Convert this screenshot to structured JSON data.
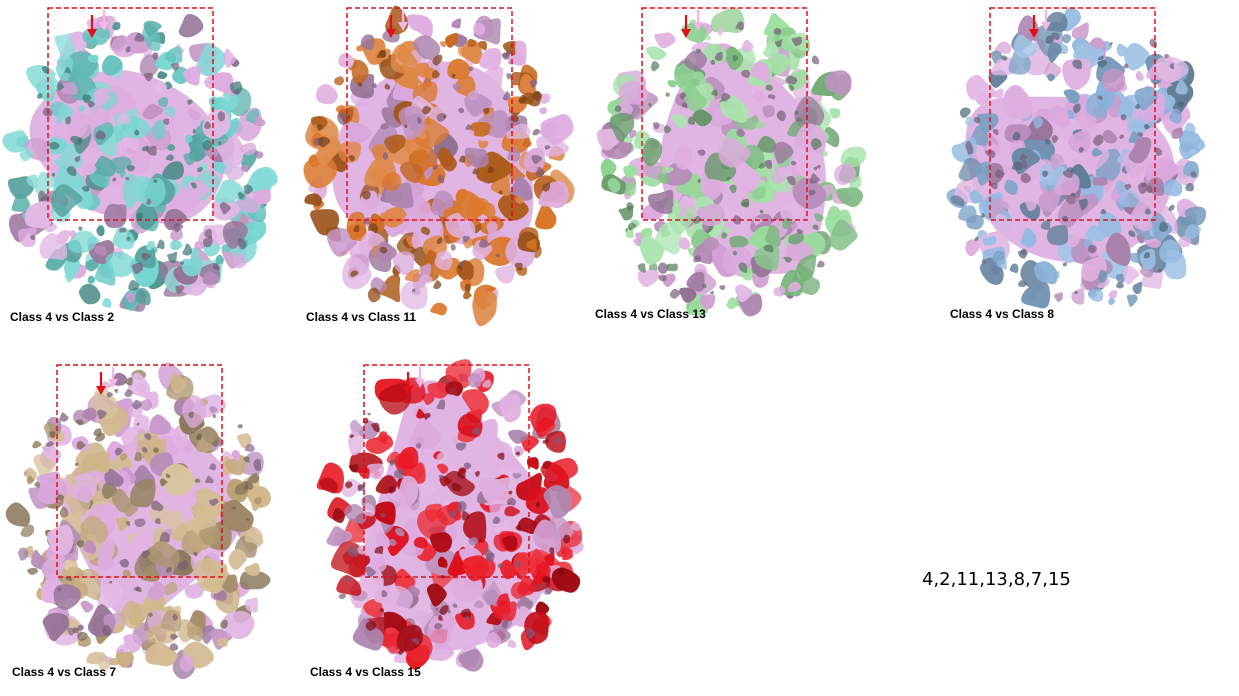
{
  "panels": [
    {
      "caption": "Class 4 vs Class 2",
      "overlay_color": "#6fd4cf",
      "reference_color": "#dca8de"
    },
    {
      "caption": "Class 4 vs Class 11",
      "overlay_color": "#d97325",
      "reference_color": "#dca8de"
    },
    {
      "caption": "Class 4 vs Class 13",
      "overlay_color": "#98df9c",
      "reference_color": "#dca8de"
    },
    {
      "caption": "Class 4 vs Class 8",
      "overlay_color": "#8fb8e0",
      "reference_color": "#dca8de"
    },
    {
      "caption": "Class 4 vs Class 7",
      "overlay_color": "#cfb487",
      "reference_color": "#dca8de"
    },
    {
      "caption": "Class 4 vs Class 15",
      "overlay_color": "#e8101c",
      "reference_color": "#dca8de"
    }
  ],
  "box_color": "#e0101a",
  "arrow_colors": {
    "primary": "#e0101a",
    "secondary": "#f3b6e6"
  },
  "class_order": "4,2,11,13,8,7,15"
}
